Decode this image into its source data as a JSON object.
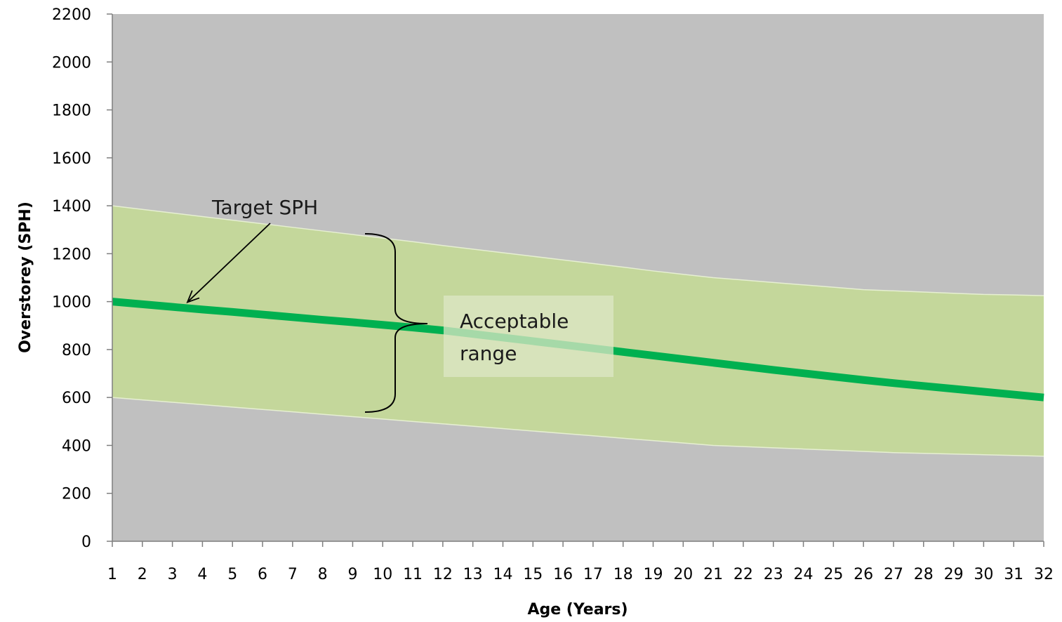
{
  "chart_data": {
    "type": "area",
    "xlabel": "Age (Years)",
    "ylabel": "Overstorey (SPH)",
    "x": [
      1,
      2,
      3,
      4,
      5,
      6,
      7,
      8,
      9,
      10,
      11,
      12,
      13,
      14,
      15,
      16,
      17,
      18,
      19,
      20,
      21,
      22,
      23,
      24,
      25,
      26,
      27,
      28,
      29,
      30,
      31,
      32
    ],
    "xlim": [
      1,
      32
    ],
    "ylim": [
      0,
      2200
    ],
    "yticks": [
      0,
      200,
      400,
      600,
      800,
      1000,
      1200,
      1400,
      1600,
      1800,
      2000,
      2200
    ],
    "grid": false,
    "series": [
      {
        "role": "upper-bound",
        "values": [
          1400,
          1385,
          1370,
          1355,
          1340,
          1325,
          1310,
          1295,
          1280,
          1265,
          1250,
          1234,
          1219,
          1204,
          1189,
          1174,
          1159,
          1144,
          1128,
          1114,
          1100,
          1090,
          1080,
          1070,
          1060,
          1050,
          1045,
          1040,
          1035,
          1030,
          1028,
          1025
        ]
      },
      {
        "role": "lower-bound",
        "values": [
          600,
          590,
          580,
          570,
          560,
          550,
          540,
          530,
          520,
          510,
          500,
          490,
          480,
          470,
          460,
          450,
          440,
          430,
          420,
          410,
          400,
          395,
          390,
          385,
          380,
          375,
          370,
          367,
          364,
          361,
          358,
          355
        ]
      },
      {
        "role": "target-line",
        "values": [
          1000,
          989,
          978,
          967,
          957,
          946,
          935,
          924,
          914,
          903,
          892,
          880,
          865,
          850,
          835,
          820,
          805,
          790,
          775,
          760,
          745,
          730,
          715,
          701,
          687,
          673,
          660,
          648,
          636,
          624,
          612,
          600
        ]
      }
    ],
    "annotations": [
      {
        "text": "Target SPH",
        "points_to": {
          "x": 3.5,
          "y": 980
        }
      },
      {
        "text": "Acceptable",
        "line": 1
      },
      {
        "text": "range",
        "line": 2
      }
    ],
    "colors": {
      "background_band": "#c0c0c0",
      "acceptable_fill": "#c4d79b",
      "target_line": "#00b050",
      "label_box": "#dde7c6"
    }
  }
}
